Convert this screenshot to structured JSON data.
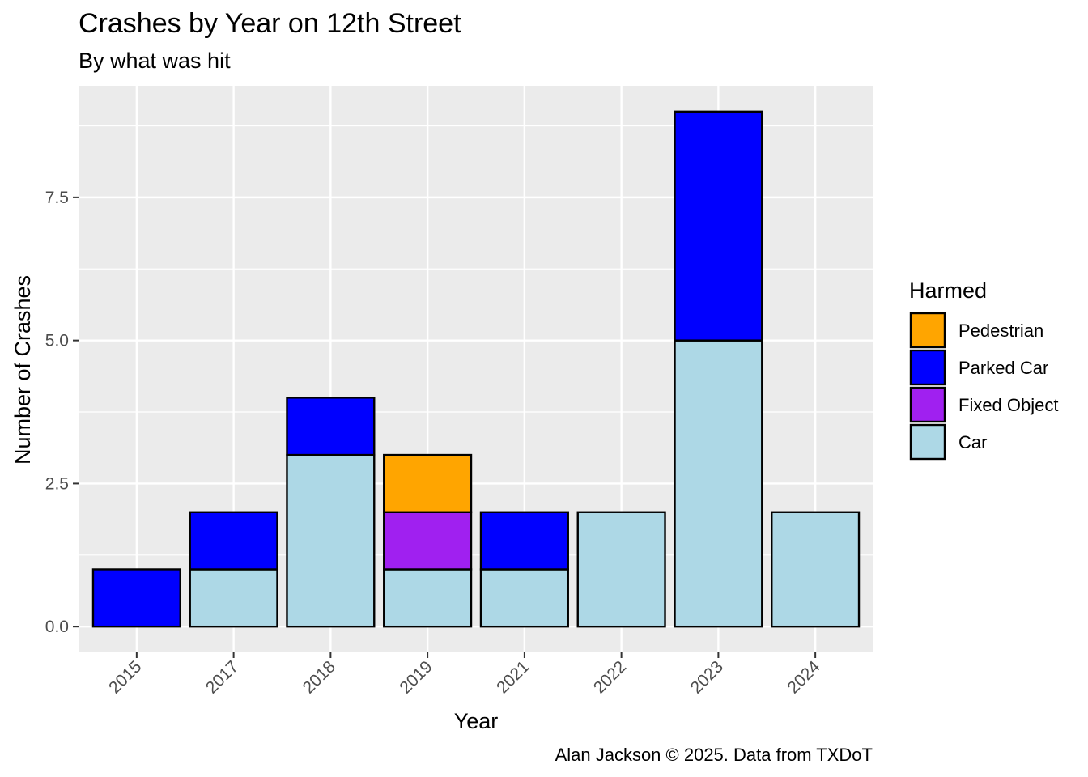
{
  "chart_data": {
    "type": "bar",
    "stacked": true,
    "title": "Crashes by Year on 12th Street",
    "subtitle": "By what was hit",
    "xlabel": "Year",
    "ylabel": "Number of Crashes",
    "caption": "Alan Jackson © 2025. Data from TXDoT",
    "categories": [
      "2015",
      "2017",
      "2018",
      "2019",
      "2021",
      "2022",
      "2023",
      "2024"
    ],
    "y_ticks": [
      0,
      2.5,
      5,
      7.5
    ],
    "y_tick_labels": [
      "0.0",
      "2.5",
      "5.0",
      "7.5"
    ],
    "ylim": [
      -0.45,
      9.45
    ],
    "grid": true,
    "x_tick_angle": 45,
    "legend": {
      "title": "Harmed",
      "position": "right",
      "entries": [
        "Pedestrian",
        "Parked Car",
        "Fixed Object",
        "Car"
      ]
    },
    "series": [
      {
        "name": "Car",
        "color": "#ADD8E6",
        "values": [
          0,
          1,
          3,
          1,
          1,
          2,
          5,
          2
        ]
      },
      {
        "name": "Fixed Object",
        "color": "#A020F0",
        "values": [
          0,
          0,
          0,
          1,
          0,
          0,
          0,
          0
        ]
      },
      {
        "name": "Parked Car",
        "color": "#0000FF",
        "values": [
          1,
          1,
          1,
          0,
          1,
          0,
          4,
          0
        ]
      },
      {
        "name": "Pedestrian",
        "color": "#FFA500",
        "values": [
          0,
          0,
          0,
          1,
          0,
          0,
          0,
          0
        ]
      }
    ],
    "panel_color": "#EBEBEB",
    "grid_color": "#FFFFFF"
  }
}
